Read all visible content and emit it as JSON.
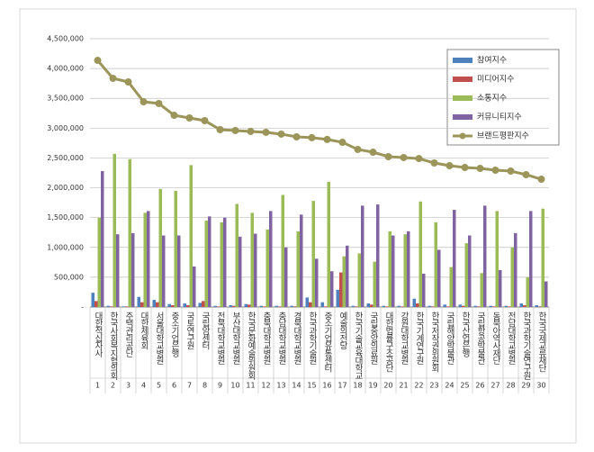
{
  "chart_data": {
    "type": "bar",
    "categories": [
      "대한적십자사",
      "한국사회복지협의회",
      "주택관리공단",
      "대한체육회",
      "서울대학교병원",
      "중소기업은행",
      "국토연구원",
      "국립암센터",
      "전북대학교병원",
      "부산대학교병원",
      "한국문화예술위원회",
      "충북대학교병원",
      "충남대학교병원",
      "경북대학교병원",
      "한국과학기술원",
      "중소기업유통센터",
      "예술의전당",
      "한국기술교육대학교",
      "국립중앙의료원",
      "대한법률구조공단",
      "강원대학교병원",
      "한국기계연구원",
      "한국저작권위원회",
      "국립해양박물관",
      "한국산업은행",
      "국립항공박물관",
      "동북아역사재단",
      "전남대학교병원",
      "한국과학기술연구원",
      "한국국제교류재단"
    ],
    "ranks": [
      1,
      2,
      3,
      4,
      5,
      6,
      7,
      8,
      9,
      10,
      11,
      12,
      13,
      14,
      15,
      16,
      17,
      18,
      19,
      20,
      21,
      22,
      23,
      24,
      25,
      26,
      27,
      28,
      29,
      30
    ],
    "series": [
      {
        "name": "참여지수",
        "type": "bar",
        "color": "#4f81bd",
        "values": [
          240000,
          20000,
          10000,
          170000,
          120000,
          50000,
          60000,
          70000,
          20000,
          30000,
          50000,
          20000,
          20000,
          20000,
          160000,
          80000,
          290000,
          20000,
          60000,
          20000,
          20000,
          140000,
          20000,
          40000,
          40000,
          20000,
          20000,
          20000,
          60000,
          30000
        ]
      },
      {
        "name": "미디어지수",
        "type": "bar",
        "color": "#c0504d",
        "values": [
          100000,
          10000,
          10000,
          80000,
          80000,
          30000,
          30000,
          100000,
          10000,
          20000,
          40000,
          10000,
          10000,
          10000,
          80000,
          10000,
          580000,
          10000,
          40000,
          10000,
          10000,
          60000,
          10000,
          10000,
          20000,
          10000,
          10000,
          10000,
          30000,
          10000
        ]
      },
      {
        "name": "소통지수",
        "type": "bar",
        "color": "#9bbb59",
        "values": [
          1500000,
          2570000,
          2480000,
          1580000,
          1980000,
          1950000,
          2380000,
          1450000,
          1420000,
          1730000,
          1580000,
          1300000,
          1880000,
          1270000,
          1780000,
          2100000,
          850000,
          900000,
          760000,
          1270000,
          1220000,
          1770000,
          1420000,
          670000,
          1070000,
          570000,
          1610000,
          1000000,
          500000,
          1650000
        ]
      },
      {
        "name": "커뮤니티지수",
        "type": "bar",
        "color": "#8064a2",
        "values": [
          2280000,
          1220000,
          1240000,
          1610000,
          1200000,
          1200000,
          680000,
          1520000,
          1500000,
          1180000,
          1230000,
          1610000,
          1000000,
          1550000,
          810000,
          600000,
          1030000,
          1700000,
          1720000,
          1200000,
          1270000,
          560000,
          960000,
          1630000,
          1200000,
          1700000,
          620000,
          1240000,
          1610000,
          430000
        ]
      },
      {
        "name": "브랜드평판지수",
        "type": "line",
        "color": "#9c955a",
        "values": [
          4137000,
          3836000,
          3775000,
          3443000,
          3413000,
          3216000,
          3171000,
          3126000,
          2975000,
          2960000,
          2945000,
          2930000,
          2900000,
          2854000,
          2840000,
          2810000,
          2763000,
          2643000,
          2597000,
          2522000,
          2507000,
          2490000,
          2416000,
          2371000,
          2340000,
          2325000,
          2295000,
          2280000,
          2220000,
          2144000
        ]
      }
    ],
    "ylim": [
      0,
      4500000
    ],
    "yticks": [
      {
        "value": 0,
        "label": "-"
      },
      {
        "value": 500000,
        "label": "500,000"
      },
      {
        "value": 1000000,
        "label": "1,000,000"
      },
      {
        "value": 1500000,
        "label": "1,500,000"
      },
      {
        "value": 2000000,
        "label": "2,000,000"
      },
      {
        "value": 2500000,
        "label": "2,500,000"
      },
      {
        "value": 3000000,
        "label": "3,000,000"
      },
      {
        "value": 3500000,
        "label": "3,500,000"
      },
      {
        "value": 4000000,
        "label": "4,000,000"
      },
      {
        "value": 4500000,
        "label": "4,500,000"
      }
    ],
    "grid": true
  }
}
